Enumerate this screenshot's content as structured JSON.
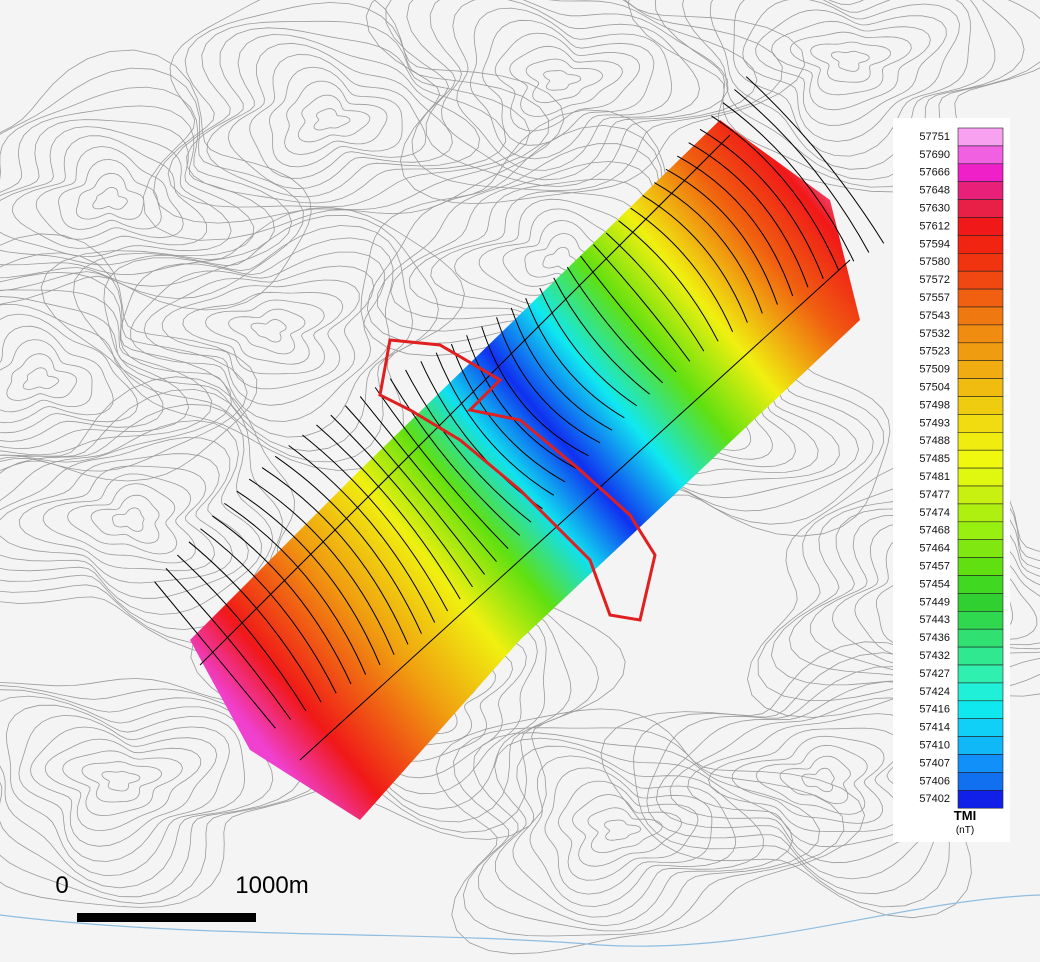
{
  "legend": {
    "title": "TMI",
    "unit": "(nT)",
    "entries": [
      {
        "label": "57751",
        "color": "#f7a1f0"
      },
      {
        "label": "57690",
        "color": "#f060e0"
      },
      {
        "label": "57666",
        "color": "#f020c8"
      },
      {
        "label": "57648",
        "color": "#e8207a"
      },
      {
        "label": "57630",
        "color": "#e82048"
      },
      {
        "label": "57612",
        "color": "#f01818"
      },
      {
        "label": "57594",
        "color": "#f02410"
      },
      {
        "label": "57580",
        "color": "#f03410"
      },
      {
        "label": "57572",
        "color": "#f04810"
      },
      {
        "label": "57557",
        "color": "#f06010"
      },
      {
        "label": "57543",
        "color": "#f07810"
      },
      {
        "label": "57532",
        "color": "#f08c10"
      },
      {
        "label": "57523",
        "color": "#f09c10"
      },
      {
        "label": "57509",
        "color": "#f0ac10"
      },
      {
        "label": "57504",
        "color": "#f0bc10"
      },
      {
        "label": "57498",
        "color": "#f0cc10"
      },
      {
        "label": "57493",
        "color": "#f0dc10"
      },
      {
        "label": "57488",
        "color": "#f0ec10"
      },
      {
        "label": "57485",
        "color": "#f0f810"
      },
      {
        "label": "57481",
        "color": "#e0f810"
      },
      {
        "label": "57477",
        "color": "#c8f010"
      },
      {
        "label": "57474",
        "color": "#b0f010"
      },
      {
        "label": "57468",
        "color": "#98f010"
      },
      {
        "label": "57464",
        "color": "#80e810"
      },
      {
        "label": "57457",
        "color": "#60e010"
      },
      {
        "label": "57454",
        "color": "#40d820"
      },
      {
        "label": "57449",
        "color": "#30d030"
      },
      {
        "label": "57443",
        "color": "#30d850"
      },
      {
        "label": "57436",
        "color": "#30e070"
      },
      {
        "label": "57432",
        "color": "#30e890"
      },
      {
        "label": "57427",
        "color": "#30f0b0"
      },
      {
        "label": "57424",
        "color": "#20f0d8"
      },
      {
        "label": "57416",
        "color": "#10e8f0"
      },
      {
        "label": "57414",
        "color": "#10d0f8"
      },
      {
        "label": "57410",
        "color": "#10b8f8"
      },
      {
        "label": "57407",
        "color": "#1090f8"
      },
      {
        "label": "57406",
        "color": "#1070f0"
      },
      {
        "label": "57402",
        "color": "#1020e8"
      }
    ]
  },
  "scale_bar": {
    "start": "0",
    "end": "1000m"
  }
}
